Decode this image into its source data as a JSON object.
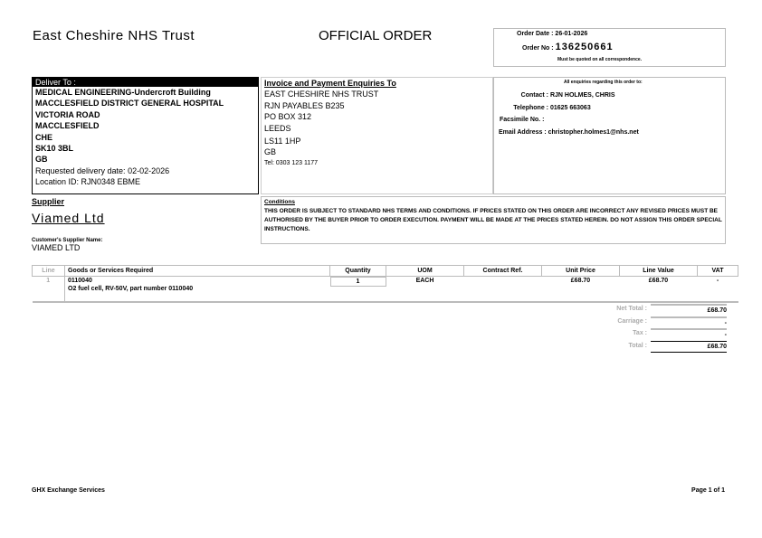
{
  "header": {
    "trust_name": "East Cheshire NHS Trust",
    "doc_title": "OFFICIAL ORDER",
    "order_date_label": "Order Date :",
    "order_date": "26-01-2026",
    "order_no_label": "Order No :",
    "order_no": "136250661",
    "quote_note": "Must be quoted on all correspondence."
  },
  "deliver": {
    "title": "Deliver To :",
    "lines": [
      "MEDICAL ENGINEERING-Undercroft Building",
      "MACCLESFIELD DISTRICT GENERAL HOSPITAL",
      "VICTORIA ROAD",
      "MACCLESFIELD",
      "CHE",
      "SK10 3BL",
      "GB"
    ],
    "requested": "Requested delivery date: 02-02-2026",
    "location": "Location ID: RJN0348 EBME"
  },
  "invoice": {
    "title": "Invoice and Payment Enquiries To",
    "lines": [
      "EAST CHESHIRE NHS TRUST",
      "RJN PAYABLES B235",
      "PO BOX 312",
      "LEEDS",
      "LS11 1HP",
      "GB"
    ],
    "tel": "Tel: 0303 123 1177"
  },
  "enquiries": {
    "title": "All enquiries regarding this order to:",
    "contact_label": "Contact :",
    "contact": "RJN HOLMES, CHRIS",
    "telephone_label": "Telephone :",
    "telephone": "01625 663063",
    "fax_label": "Facsimile No. :",
    "fax": "",
    "email_label": "Email Address :",
    "email": "christopher.holmes1@nhs.net"
  },
  "supplier": {
    "title": "Supplier",
    "name": "Viamed Ltd",
    "customer_label": "Customer's Supplier Name:",
    "customer_name": "VIAMED LTD"
  },
  "conditions": {
    "title": "Conditions",
    "text": "THIS ORDER IS SUBJECT TO STANDARD NHS TERMS AND CONDITIONS. IF PRICES STATED ON THIS ORDER ARE INCORRECT ANY REVISED PRICES MUST BE AUTHORISED BY THE BUYER PRIOR TO ORDER EXECUTION. PAYMENT WILL BE MADE AT THE PRICES STATED HEREIN. DO NOT ASSIGN THIS ORDER SPECIAL INSTRUCTIONS."
  },
  "table": {
    "headers": [
      "Line",
      "Goods or Services Required",
      "Quantity",
      "UOM",
      "Contract Ref.",
      "Unit Price",
      "Line Value",
      "VAT"
    ],
    "rows": [
      {
        "line": "1",
        "code": "0110040",
        "desc": "O2 fuel cell, RV-50V, part number 0110040",
        "qty": "1",
        "uom": "EACH",
        "contract": "",
        "unit_price": "£68.70",
        "line_value": "£68.70",
        "vat": "-"
      }
    ]
  },
  "totals": {
    "net_label": "Net Total :",
    "net": "£68.70",
    "carriage_label": "Carriage :",
    "carriage": "-",
    "tax_label": "Tax :",
    "tax": "-",
    "total_label": "Total :",
    "total": "£68.70"
  },
  "footer": {
    "left": "GHX Exchange Services",
    "right": "Page 1 of 1"
  }
}
